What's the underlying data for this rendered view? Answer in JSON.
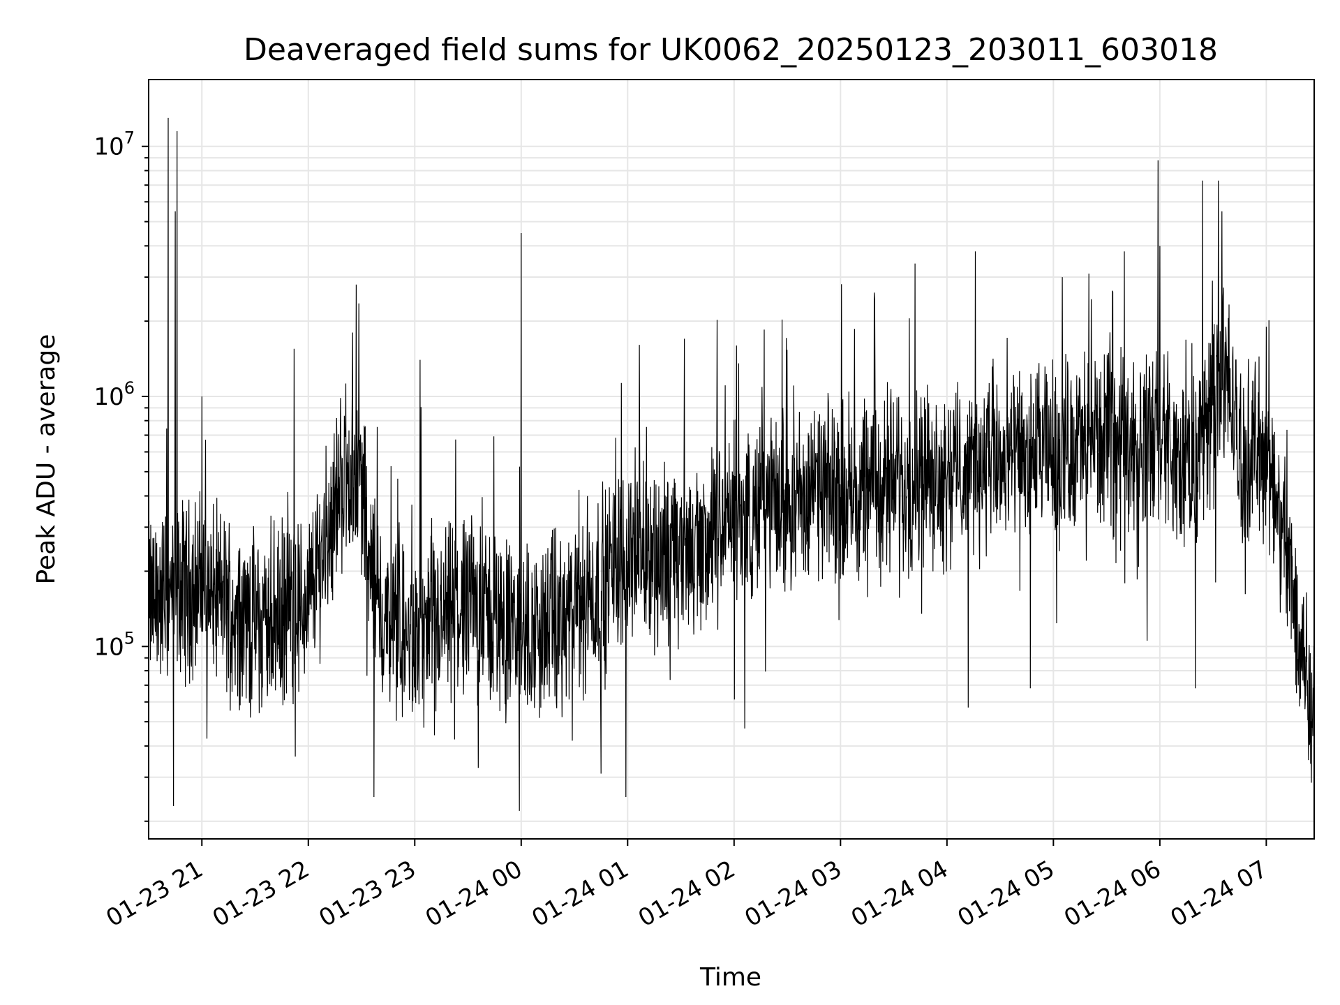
{
  "chart_data": {
    "type": "line",
    "title": "Deaveraged field sums for UK0062_20250123_203011_603018",
    "xlabel": "Time",
    "ylabel": "Peak ADU - average",
    "yscale": "log",
    "ylim": [
      17000,
      18500000
    ],
    "xlim": [
      "2025-01-23 20:30",
      "2025-01-24 07:27"
    ],
    "grid": true,
    "x_ticks": [
      "01-23 21",
      "01-23 22",
      "01-23 23",
      "01-24 00",
      "01-24 01",
      "01-24 02",
      "01-24 03",
      "01-24 04",
      "01-24 05",
      "01-24 06",
      "01-24 07"
    ],
    "y_ticks": [
      "10^5",
      "10^6",
      "10^7"
    ],
    "series": [
      {
        "color": "#000000",
        "x_start": "2025-01-23 20:30",
        "x_end": "2025-01-24 07:27",
        "baseline": [
          [
            "2025-01-23 20:30",
            150000
          ],
          [
            "2025-01-23 21:00",
            180000
          ],
          [
            "2025-01-23 21:30",
            120000
          ],
          [
            "2025-01-23 22:00",
            150000
          ],
          [
            "2025-01-23 22:20",
            500000
          ],
          [
            "2025-01-23 22:30",
            450000
          ],
          [
            "2025-01-23 22:40",
            130000
          ],
          [
            "2025-01-23 23:00",
            100000
          ],
          [
            "2025-01-23 23:30",
            150000
          ],
          [
            "2025-01-24 00:00",
            110000
          ],
          [
            "2025-01-24 00:30",
            130000
          ],
          [
            "2025-01-24 01:00",
            250000
          ],
          [
            "2025-01-24 01:30",
            220000
          ],
          [
            "2025-01-24 02:00",
            330000
          ],
          [
            "2025-01-24 02:30",
            380000
          ],
          [
            "2025-01-24 03:00",
            430000
          ],
          [
            "2025-01-24 03:30",
            460000
          ],
          [
            "2025-01-24 04:00",
            500000
          ],
          [
            "2025-01-24 04:30",
            540000
          ],
          [
            "2025-01-24 05:00",
            600000
          ],
          [
            "2025-01-24 05:30",
            700000
          ],
          [
            "2025-01-24 06:00",
            650000
          ],
          [
            "2025-01-24 06:20",
            500000
          ],
          [
            "2025-01-24 06:35",
            1500000
          ],
          [
            "2025-01-24 06:45",
            600000
          ],
          [
            "2025-01-24 07:00",
            600000
          ],
          [
            "2025-01-24 07:10",
            250000
          ],
          [
            "2025-01-24 07:27",
            60000
          ]
        ],
        "spikes": [
          [
            "2025-01-23 20:41",
            13000000
          ],
          [
            "2025-01-23 20:46",
            11500000
          ],
          [
            "2025-01-23 20:45",
            5500000
          ],
          [
            "2025-01-23 21:00",
            1000000
          ],
          [
            "2025-01-23 21:52",
            1550000
          ],
          [
            "2025-01-23 22:27",
            2800000
          ],
          [
            "2025-01-23 22:25",
            1800000
          ],
          [
            "2025-01-23 23:03",
            1400000
          ],
          [
            "2025-01-24 00:00",
            4500000
          ],
          [
            "2025-01-24 01:32",
            1700000
          ],
          [
            "2025-01-24 02:17",
            1850000
          ],
          [
            "2025-01-24 03:19",
            2600000
          ],
          [
            "2025-01-24 03:42",
            3400000
          ],
          [
            "2025-01-24 04:16",
            3800000
          ],
          [
            "2025-01-24 05:05",
            3000000
          ],
          [
            "2025-01-24 05:20",
            3100000
          ],
          [
            "2025-01-24 05:40",
            3800000
          ],
          [
            "2025-01-24 05:59",
            8800000
          ],
          [
            "2025-01-24 06:24",
            7300000
          ],
          [
            "2025-01-24 06:33",
            7300000
          ],
          [
            "2025-01-24 06:35",
            5500000
          ],
          [
            "2025-01-24 06:00",
            4000000
          ],
          [
            "2025-01-24 07:00",
            1900000
          ]
        ],
        "dips": [
          [
            "2025-01-23 20:44",
            23000
          ],
          [
            "2025-01-23 22:37",
            25000
          ],
          [
            "2025-01-23 23:59",
            22000
          ],
          [
            "2025-01-24 00:59",
            25000
          ],
          [
            "2025-01-24 00:45",
            31000
          ],
          [
            "2025-01-24 02:06",
            47000
          ],
          [
            "2025-01-24 04:12",
            57000
          ],
          [
            "2025-01-24 04:47",
            68000
          ],
          [
            "2025-01-24 06:20",
            68000
          ],
          [
            "2025-01-24 07:17",
            65000
          ]
        ]
      }
    ]
  }
}
